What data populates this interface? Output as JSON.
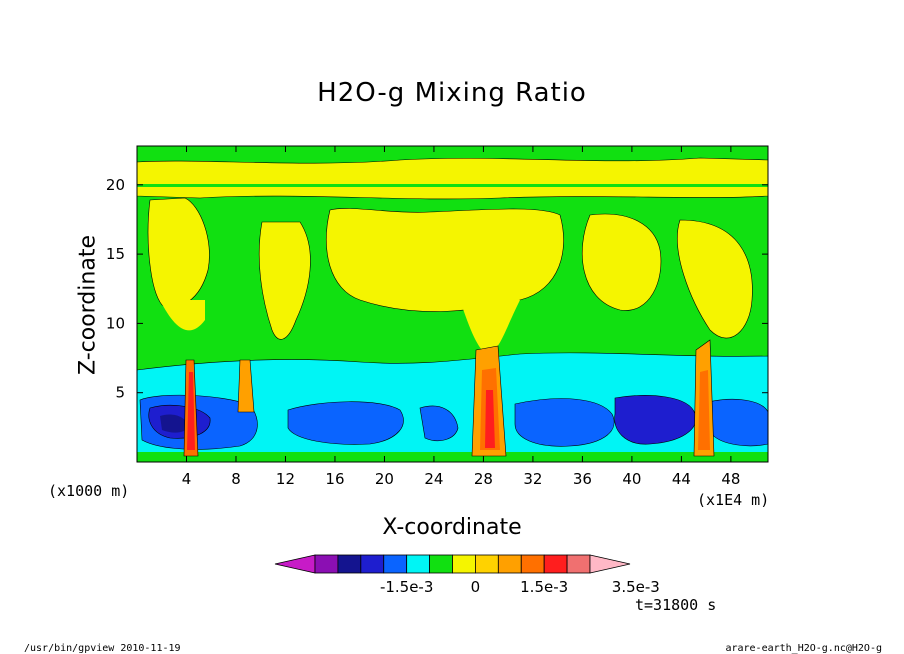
{
  "chart_data": {
    "type": "heatmap",
    "title": "H2O-g Mixing Ratio",
    "xlabel": "X-coordinate",
    "ylabel": "Z-coordinate",
    "x_unit_left": "(x1000 m)",
    "x_unit_right": "(x1E4 m)",
    "xlim": [
      0,
      51
    ],
    "ylim": [
      0,
      22.8
    ],
    "x_ticks": [
      4,
      8,
      12,
      16,
      20,
      24,
      28,
      32,
      36,
      40,
      44,
      48
    ],
    "y_ticks": [
      5,
      10,
      15,
      20
    ],
    "colorbar": {
      "levels": [
        -0.0035,
        -0.003,
        -0.0025,
        -0.002,
        -0.0015,
        -0.001,
        -0.0005,
        0,
        0.0005,
        0.001,
        0.0015,
        0.002,
        0.0025,
        0.003,
        0.0035
      ],
      "colors": [
        "#c71bc7",
        "#8b0fb3",
        "#14148f",
        "#1e1ecf",
        "#0a64ff",
        "#00f5f5",
        "#11e011",
        "#f5f500",
        "#ffd200",
        "#ffa000",
        "#ff7000",
        "#ff1e1e",
        "#f07070",
        "#ffb8c6"
      ],
      "labels": [
        "-1.5e-3",
        "0",
        "1.5e-3",
        "3.5e-3"
      ],
      "label_values": [
        -0.0015,
        0,
        0.0015,
        0.0035
      ]
    },
    "time_label": "t=31800 s"
  },
  "footer": {
    "left": "/usr/bin/gpview  2010-11-19",
    "right": "arare-earth_H2O-g.nc@H2O-g"
  }
}
